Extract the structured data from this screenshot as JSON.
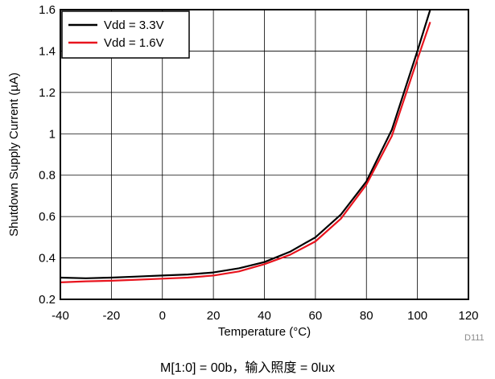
{
  "chart_data": {
    "type": "line",
    "xlabel": "Temperature (°C)",
    "ylabel": "Shutdown Supply Current (µA)",
    "xlim": [
      -40,
      120
    ],
    "ylim": [
      0.2,
      1.6
    ],
    "xticks": [
      -40,
      -20,
      0,
      20,
      40,
      60,
      80,
      100,
      120
    ],
    "xtick_labels": [
      "-40",
      "-20",
      "0",
      "20",
      "40",
      "60",
      "80",
      "100",
      "120"
    ],
    "yticks": [
      0.2,
      0.4,
      0.6,
      0.8,
      1.0,
      1.2,
      1.4,
      1.6
    ],
    "ytick_labels": [
      "0.2",
      "0.4",
      "0.6",
      "0.8",
      "1",
      "1.2",
      "1.4",
      "1.6"
    ],
    "grid": true,
    "legend_position": "top-left",
    "series": [
      {
        "name": "Vdd = 3.3V",
        "color": "#000000",
        "x": [
          -40,
          -30,
          -20,
          -10,
          0,
          10,
          20,
          30,
          40,
          50,
          60,
          70,
          80,
          90,
          100,
          105
        ],
        "y": [
          0.305,
          0.302,
          0.305,
          0.31,
          0.315,
          0.32,
          0.33,
          0.35,
          0.38,
          0.43,
          0.5,
          0.61,
          0.77,
          1.02,
          1.4,
          1.6
        ]
      },
      {
        "name": "Vdd = 1.6V",
        "color": "#e8141e",
        "x": [
          -40,
          -30,
          -20,
          -10,
          0,
          10,
          20,
          30,
          40,
          50,
          60,
          70,
          80,
          90,
          100,
          105
        ],
        "y": [
          0.282,
          0.287,
          0.29,
          0.295,
          0.3,
          0.305,
          0.315,
          0.335,
          0.37,
          0.415,
          0.48,
          0.59,
          0.755,
          0.99,
          1.36,
          1.54
        ]
      }
    ]
  },
  "figure_id": "D111",
  "caption": "M[1:0] = 00b，输入照度 = 0lux"
}
